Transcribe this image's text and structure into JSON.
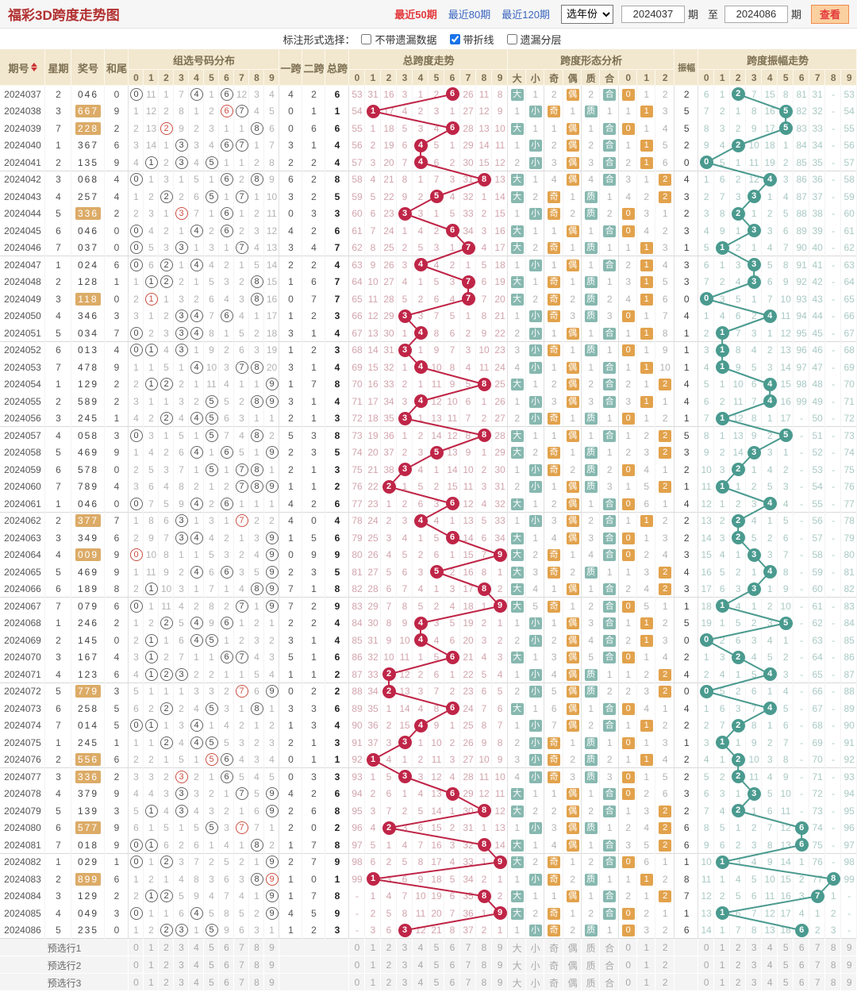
{
  "title": "福彩3D跨度走势图",
  "toolbar": {
    "range_links": [
      {
        "label": "最近50期",
        "active": true
      },
      {
        "label": "最近80期",
        "active": false
      },
      {
        "label": "最近120期",
        "active": false
      }
    ],
    "year_select": "选年份",
    "from_issue": "2024037",
    "unit_label": "期",
    "to_label": "至",
    "to_issue": "2024086",
    "view_button": "查看"
  },
  "options": {
    "label": "标注形式选择：",
    "checkboxes": [
      {
        "label": "不带遗漏数据",
        "checked": false
      },
      {
        "label": "带折线",
        "checked": true
      },
      {
        "label": "遗漏分层",
        "checked": false
      }
    ]
  },
  "table": {
    "headers": {
      "issue": "期号",
      "week": "星期",
      "prize": "奖号",
      "hewei": "和尾",
      "group_dist": "组选号码分布",
      "yikua": "一跨",
      "erkua": "二跨",
      "zongkua": "总跨",
      "zong_trend": "总跨度走势",
      "form": "跨度形态分析",
      "zhenfu": "振幅",
      "amp_trend": "跨度振幅走势",
      "digits": [
        "0",
        "1",
        "2",
        "3",
        "4",
        "5",
        "6",
        "7",
        "8",
        "9"
      ],
      "form_cols": [
        "大",
        "小",
        "奇",
        "偶",
        "质",
        "合",
        "0",
        "1",
        "2"
      ]
    },
    "rows": [
      {
        "issue": "2024037",
        "week": "2",
        "prize": "046"
      },
      {
        "issue": "2024038",
        "week": "3",
        "prize": "667"
      },
      {
        "issue": "2024039",
        "week": "7",
        "prize": "228"
      },
      {
        "issue": "2024040",
        "week": "1",
        "prize": "367"
      },
      {
        "issue": "2024041",
        "week": "2",
        "prize": "135"
      },
      {
        "issue": "2024042",
        "week": "3",
        "prize": "068"
      },
      {
        "issue": "2024043",
        "week": "4",
        "prize": "257"
      },
      {
        "issue": "2024044",
        "week": "5",
        "prize": "336"
      },
      {
        "issue": "2024045",
        "week": "6",
        "prize": "046"
      },
      {
        "issue": "2024046",
        "week": "7",
        "prize": "037"
      },
      {
        "issue": "2024047",
        "week": "1",
        "prize": "024"
      },
      {
        "issue": "2024048",
        "week": "2",
        "prize": "128"
      },
      {
        "issue": "2024049",
        "week": "3",
        "prize": "118"
      },
      {
        "issue": "2024050",
        "week": "4",
        "prize": "346"
      },
      {
        "issue": "2024051",
        "week": "5",
        "prize": "034"
      },
      {
        "issue": "2024052",
        "week": "6",
        "prize": "013"
      },
      {
        "issue": "2024053",
        "week": "7",
        "prize": "478"
      },
      {
        "issue": "2024054",
        "week": "1",
        "prize": "129"
      },
      {
        "issue": "2024055",
        "week": "2",
        "prize": "589"
      },
      {
        "issue": "2024056",
        "week": "3",
        "prize": "245"
      },
      {
        "issue": "2024057",
        "week": "4",
        "prize": "058"
      },
      {
        "issue": "2024058",
        "week": "5",
        "prize": "469"
      },
      {
        "issue": "2024059",
        "week": "6",
        "prize": "578"
      },
      {
        "issue": "2024060",
        "week": "7",
        "prize": "789"
      },
      {
        "issue": "2024061",
        "week": "1",
        "prize": "046"
      },
      {
        "issue": "2024062",
        "week": "2",
        "prize": "377"
      },
      {
        "issue": "2024063",
        "week": "3",
        "prize": "349"
      },
      {
        "issue": "2024064",
        "week": "4",
        "prize": "009"
      },
      {
        "issue": "2024065",
        "week": "5",
        "prize": "469"
      },
      {
        "issue": "2024066",
        "week": "6",
        "prize": "189"
      },
      {
        "issue": "2024067",
        "week": "7",
        "prize": "079"
      },
      {
        "issue": "2024068",
        "week": "1",
        "prize": "246"
      },
      {
        "issue": "2024069",
        "week": "2",
        "prize": "145"
      },
      {
        "issue": "2024070",
        "week": "3",
        "prize": "167"
      },
      {
        "issue": "2024071",
        "week": "4",
        "prize": "123"
      },
      {
        "issue": "2024072",
        "week": "5",
        "prize": "779"
      },
      {
        "issue": "2024073",
        "week": "6",
        "prize": "258"
      },
      {
        "issue": "2024074",
        "week": "7",
        "prize": "014"
      },
      {
        "issue": "2024075",
        "week": "1",
        "prize": "245"
      },
      {
        "issue": "2024076",
        "week": "2",
        "prize": "556"
      },
      {
        "issue": "2024077",
        "week": "3",
        "prize": "336"
      },
      {
        "issue": "2024078",
        "week": "4",
        "prize": "379"
      },
      {
        "issue": "2024079",
        "week": "5",
        "prize": "139"
      },
      {
        "issue": "2024080",
        "week": "6",
        "prize": "577"
      },
      {
        "issue": "2024081",
        "week": "7",
        "prize": "018"
      },
      {
        "issue": "2024082",
        "week": "1",
        "prize": "029"
      },
      {
        "issue": "2024083",
        "week": "2",
        "prize": "899"
      },
      {
        "issue": "2024084",
        "week": "3",
        "prize": "129"
      },
      {
        "issue": "2024085",
        "week": "4",
        "prize": "049"
      },
      {
        "issue": "2024086",
        "week": "5",
        "prize": "235"
      }
    ],
    "seeds": {
      "comment": "miss counters carried in from before the first displayed period; values over 99 display as the overflow mark",
      "group": [
        0,
        10,
        0,
        6,
        0,
        0,
        0,
        11,
        2,
        3
      ],
      "zong": [
        52,
        30,
        15,
        2,
        0,
        1,
        0,
        25,
        10,
        7
      ],
      "form": [
        0,
        0,
        1,
        0,
        1,
        0,
        0,
        0,
        1
      ],
      "amp": [
        5,
        0,
        0,
        6,
        14,
        7,
        80,
        30,
        999,
        52
      ],
      "prev_zongkua": 4
    },
    "overflow_display": "-",
    "footer_rows": [
      "预选行1",
      "预选行2",
      "预选行3"
    ]
  },
  "colors": {
    "title_red": "#b23030",
    "hot_red": "#e4393c",
    "link_blue": "#3a66c0",
    "header_bg": "#f2e8cf",
    "header_text": "#7d6f52",
    "zong_ball": "#bf2547",
    "zong_miss": "#d2a4ad",
    "amp_ball": "#4a9a8f",
    "amp_miss": "#a9c9c4",
    "badge_teal": "#87b8b0",
    "badge_orange": "#e2a24c",
    "prize_highlight": "#dcab67",
    "group_miss": "#b3b3b3",
    "circle_border": "#666666",
    "circle_red": "#cc4f43"
  }
}
